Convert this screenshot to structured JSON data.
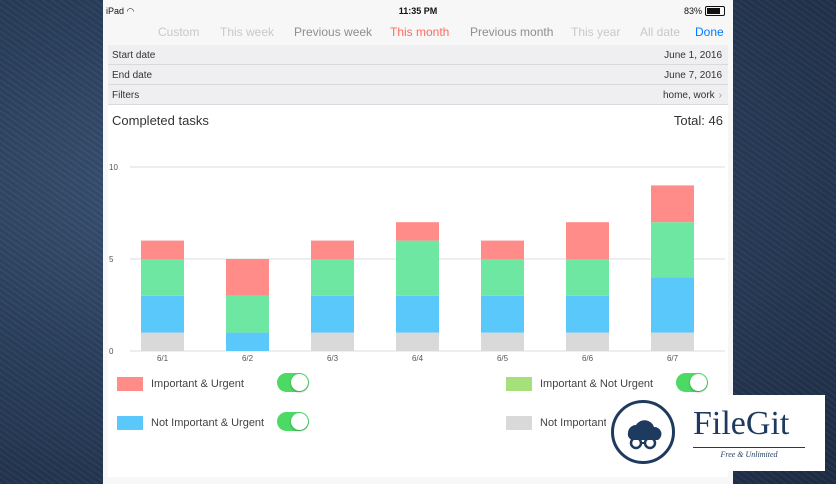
{
  "status_bar": {
    "device": "iPad",
    "time": "11:35 PM",
    "battery": "83%"
  },
  "tabs": [
    {
      "label": "Custom",
      "state": "faded"
    },
    {
      "label": "This week",
      "state": "faded"
    },
    {
      "label": "Previous week",
      "state": "normal"
    },
    {
      "label": "This month",
      "state": "selected"
    },
    {
      "label": "Previous month",
      "state": "normal"
    },
    {
      "label": "This year",
      "state": "faded"
    },
    {
      "label": "All date",
      "state": "faded"
    }
  ],
  "done_label": "Done",
  "filters": {
    "start_label": "Start date",
    "start_value": "June 1, 2016",
    "end_label": "End date",
    "end_value": "June 7, 2016",
    "filters_label": "Filters",
    "filters_value": "home, work"
  },
  "card": {
    "title": "Completed tasks",
    "total": "Total: 46"
  },
  "chart_data": {
    "type": "bar",
    "stacked": true,
    "categories": [
      "6/1",
      "6/2",
      "6/3",
      "6/4",
      "6/5",
      "6/6",
      "6/7"
    ],
    "series": [
      {
        "name": "Not Important & Not Urgent",
        "color": "#d9d9d9",
        "values": [
          1,
          0,
          1,
          1,
          1,
          1,
          1
        ]
      },
      {
        "name": "Not Important & Urgent",
        "color": "#5ac8fa",
        "values": [
          2,
          1,
          2,
          2,
          2,
          2,
          3
        ]
      },
      {
        "name": "Important & Not Urgent",
        "color": "#6ee7a2",
        "values": [
          2,
          2,
          2,
          3,
          2,
          2,
          3
        ]
      },
      {
        "name": "Important & Urgent",
        "color": "#ff8c88",
        "values": [
          1,
          2,
          1,
          1,
          1,
          2,
          2
        ]
      }
    ],
    "ylim": [
      0,
      10
    ],
    "yticks": [
      "0",
      "5",
      "10"
    ],
    "grid": true
  },
  "legend": [
    {
      "label": "Important & Urgent",
      "color": "#ff8c88",
      "on": true
    },
    {
      "label": "Important & Not Urgent",
      "color": "#a6e07a",
      "on": true
    },
    {
      "label": "Not Important & Urgent",
      "color": "#5ac8fa",
      "on": true
    },
    {
      "label": "Not Important",
      "color": "#d9d9d9",
      "on": true
    }
  ],
  "watermark": {
    "name": "FileGit",
    "tagline": "Free & Unlimited",
    "icon": "cloud-glasses-icon"
  },
  "colors": {
    "accent": "#007aff",
    "selected_tab": "#ff6b5e",
    "toggle_on": "#4cd964"
  }
}
